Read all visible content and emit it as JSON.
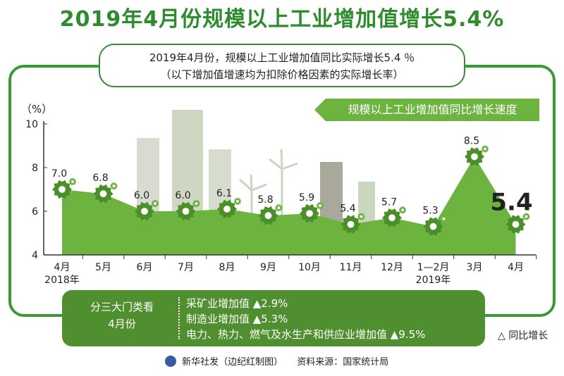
{
  "title": "2019年4月份规模以上工业增加值增长5.4%",
  "subtitle_line1": "2019年4月份，规模以上工业增加值同比实际增长5.4 ％",
  "subtitle_line2": "（以下增加值增速均为扣除价格因素的实际增长率）",
  "chart_data": {
    "type": "area",
    "series": [
      {
        "name": "规模以上工业增加值同比增长速度",
        "values": [
          7.0,
          6.8,
          6.0,
          6.0,
          6.1,
          5.8,
          5.9,
          5.4,
          5.7,
          5.3,
          8.5,
          5.4
        ]
      }
    ],
    "value_labels": [
      "7.0",
      "6.8",
      "6.0",
      "6.0",
      "6.1",
      "5.8",
      "5.9",
      "5.4",
      "5.7",
      "5.3",
      "8.5",
      "5.4"
    ],
    "categories": [
      "4月",
      "5月",
      "6月",
      "7月",
      "8月",
      "9月",
      "10月",
      "11月",
      "12月",
      "1—2月",
      "3月",
      "4月"
    ],
    "year_labels": [
      "2018年",
      "2019年"
    ],
    "yunit": "（%）",
    "ylim": [
      4,
      10
    ],
    "yticks": [
      4,
      6,
      8,
      10
    ],
    "legend": "规模以上工业增加值同比增长速度",
    "colors": {
      "area": "#6db33f",
      "gear": "#4a8f2a",
      "axis": "#333333"
    }
  },
  "categories_box": {
    "heading_line1": "分三大门类看",
    "heading_line2": "4月份",
    "items": [
      "采矿业增加值 ▲2.9%",
      "制造业增加值 ▲5.3%",
      "电力、热力、燃气及水生产和供应业增加值 ▲9.5%"
    ]
  },
  "note": "△ 同比增长",
  "footer": {
    "agency": "新华社发（边纪红制图）",
    "source": "资料来源：国家统计局"
  }
}
